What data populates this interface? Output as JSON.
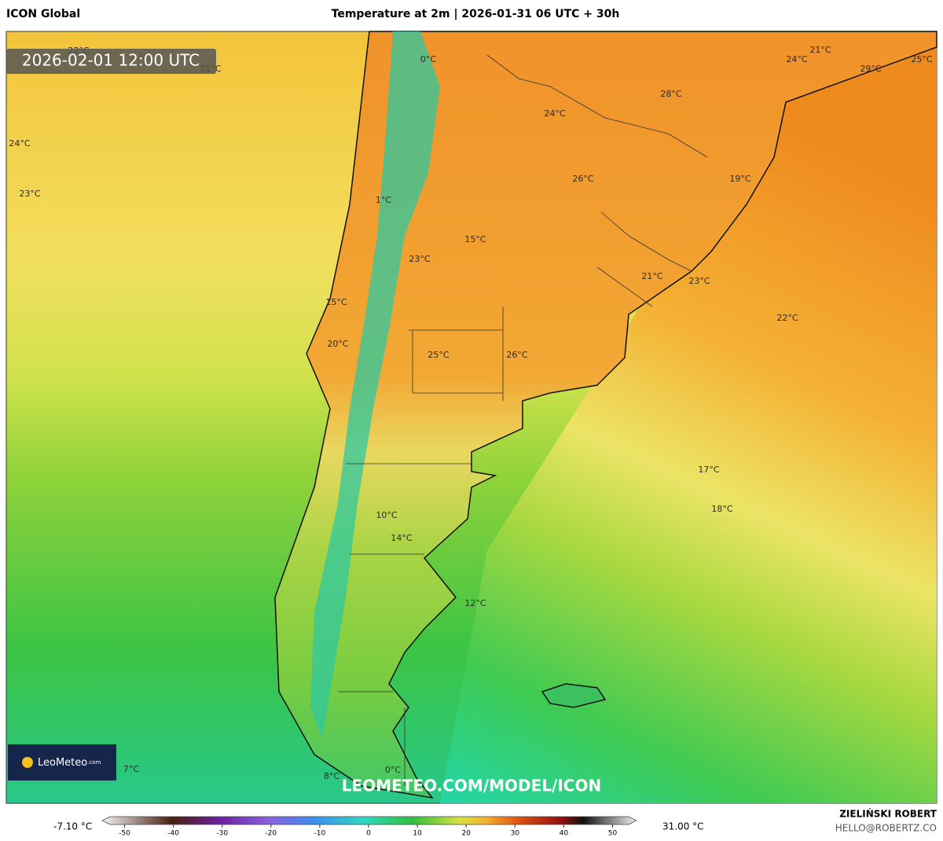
{
  "header": {
    "model": "ICON Global",
    "title": "Temperature at 2m | 2026-01-31 06 UTC + 30h"
  },
  "map": {
    "timestamp": "2026-02-01 12:00 UTC",
    "logo": "LeoMeteo",
    "logo_suffix": ".com",
    "watermark": "LEOMETEO.COM/MODEL/ICON",
    "labels": [
      "22°C",
      "21°C",
      "0°C",
      "24°C",
      "23°C",
      "24°C",
      "21°C",
      "24°C",
      "25°C",
      "29°C",
      "28°C",
      "26°C",
      "19°C",
      "1°C",
      "15°C",
      "23°C",
      "21°C",
      "23°C",
      "22°C",
      "15°C",
      "20°C",
      "25°C",
      "26°C",
      "17°C",
      "18°C",
      "10°C",
      "14°C",
      "12°C",
      "7°C",
      "8°C",
      "0°C"
    ]
  },
  "colorbar": {
    "min_label": "-7.10 °C",
    "max_label": "31.00 °C",
    "ticks": [
      -50,
      -40,
      -30,
      -20,
      -10,
      0,
      10,
      20,
      30,
      40,
      50
    ]
  },
  "footer": {
    "author": "ZIELIŃSKI ROBERT",
    "email": "HELLO@ROBERTZ.CO"
  }
}
